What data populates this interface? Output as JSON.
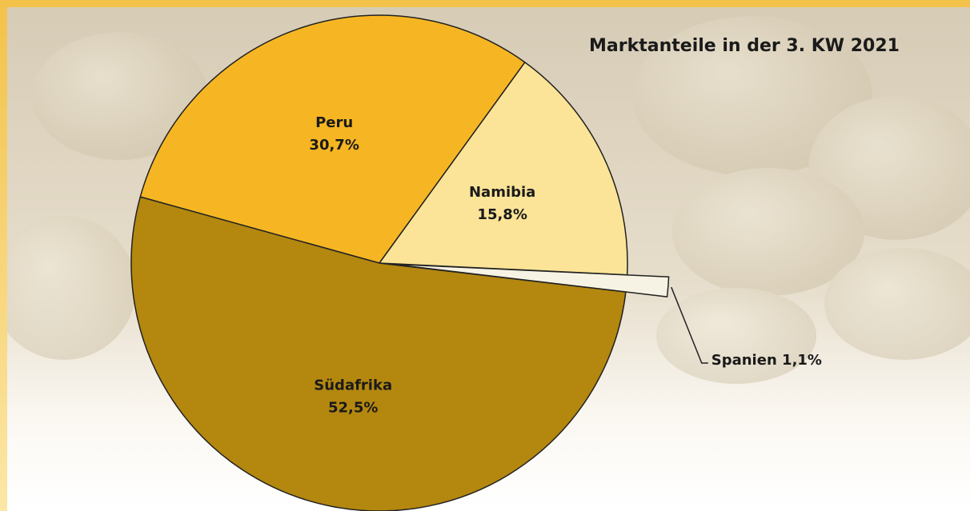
{
  "chart_data": {
    "type": "pie",
    "title": "Marktanteile in der 3. KW 2021",
    "categories": [
      "Peru",
      "Namibia",
      "Spanien",
      "Südafrika"
    ],
    "values": [
      30.7,
      15.8,
      1.1,
      52.5
    ],
    "value_labels": [
      "30,7%",
      "15,8%",
      "1,1%",
      "52,5%"
    ],
    "colors": [
      "#f6b623",
      "#fbe497",
      "#f7f3e4",
      "#b4870f"
    ],
    "explode": [
      false,
      false,
      true,
      false
    ]
  }
}
